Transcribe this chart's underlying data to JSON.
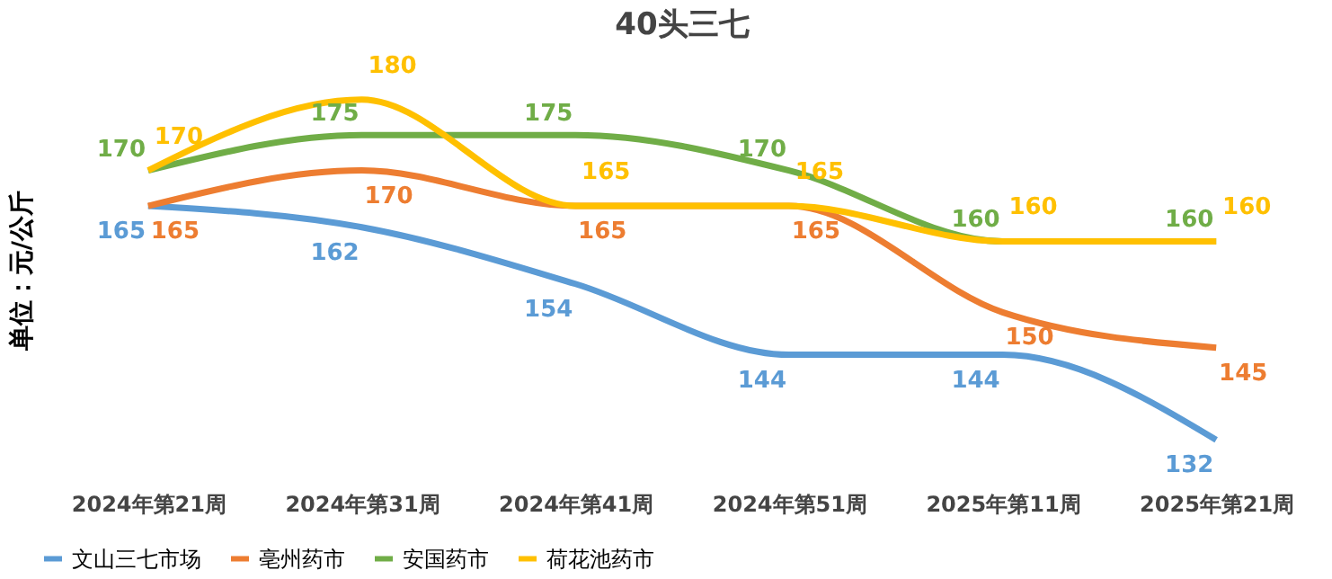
{
  "chart_data": {
    "type": "line",
    "title": "40头三七",
    "ylabel": "单位：元/公斤",
    "categories": [
      "2024年第21周",
      "2024年第31周",
      "2024年第41周",
      "2024年第51周",
      "2025年第11周",
      "2025年第21周"
    ],
    "series": [
      {
        "name": "文山三七市场",
        "color": "#5b9bd5",
        "values": [
          165,
          162,
          154,
          144,
          144,
          132
        ]
      },
      {
        "name": "亳州药市",
        "color": "#ed7d31",
        "values": [
          165,
          170,
          165,
          165,
          150,
          145
        ]
      },
      {
        "name": "安国药市",
        "color": "#70ad47",
        "values": [
          170,
          175,
          175,
          170,
          160,
          160
        ]
      },
      {
        "name": "荷花池药市",
        "color": "#ffc000",
        "values": [
          170,
          180,
          165,
          165,
          160,
          160
        ]
      }
    ],
    "data_labels": true,
    "legend": "bottom",
    "grid": false,
    "marker": "none",
    "line_style": "solid"
  }
}
